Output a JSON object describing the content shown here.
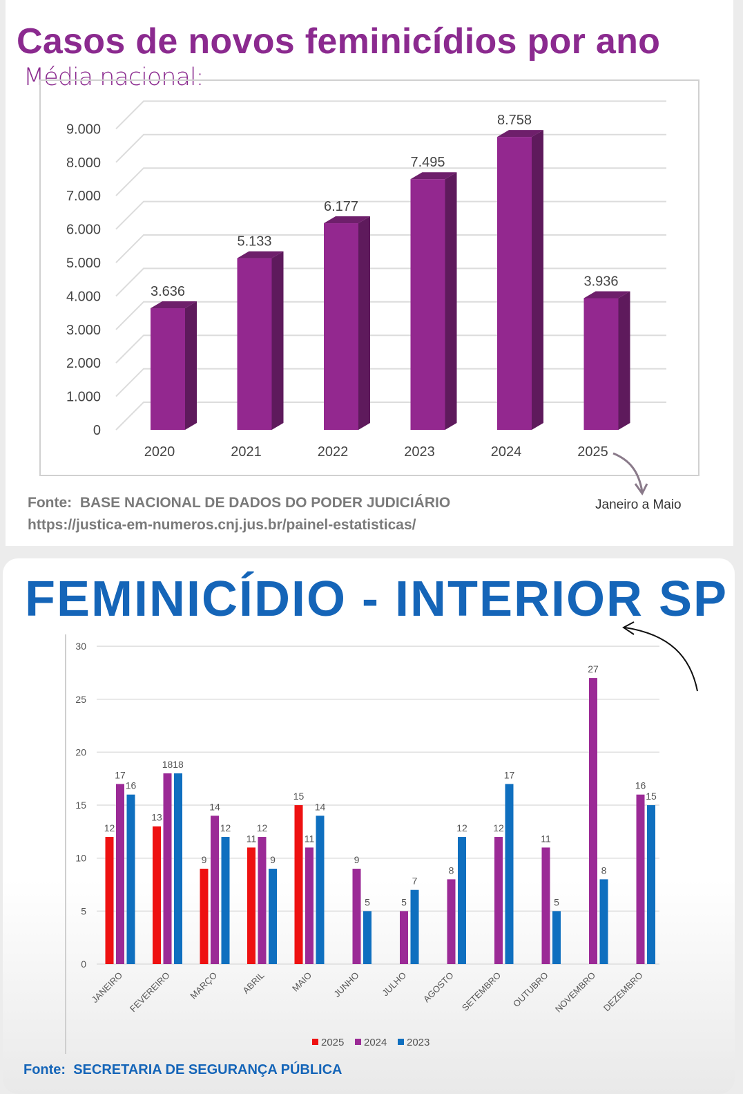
{
  "chart_data": [
    {
      "type": "bar",
      "title": "Casos de novos feminicídios por ano",
      "subtitle": "Média nacional:",
      "categories": [
        "2020",
        "2021",
        "2022",
        "2023",
        "2024",
        "2025"
      ],
      "values": [
        3636,
        5133,
        6177,
        7495,
        8758,
        3936
      ],
      "value_labels": [
        "3.636",
        "5.133",
        "6.177",
        "7.495",
        "8.758",
        "3.936"
      ],
      "yticks": [
        0,
        1000,
        2000,
        3000,
        4000,
        5000,
        6000,
        7000,
        8000,
        9000
      ],
      "ytick_labels": [
        "0",
        "1.000",
        "2.000",
        "3.000",
        "4.000",
        "5.000",
        "6.000",
        "7.000",
        "8.000",
        "9.000"
      ],
      "ylim": [
        0,
        9000
      ],
      "color": "#93288f",
      "annotation": "Janeiro a Maio",
      "source_label": "Fonte:",
      "source": "BASE NACIONAL DE DADOS DO PODER JUDICIÁRIO",
      "source_url": "https://justica-em-numeros.cnj.jus.br/painel-estatisticas/"
    },
    {
      "type": "bar",
      "title": "FEMINICÍDIO - INTERIOR SP",
      "categories": [
        "JANEIRO",
        "FEVEREIRO",
        "MARÇO",
        "ABRIL",
        "MAIO",
        "JUNHO",
        "JULHO",
        "AGOSTO",
        "SETEMBRO",
        "OUTUBRO",
        "NOVEMBRO",
        "DEZEMBRO"
      ],
      "series": [
        {
          "name": "2025",
          "color": "#ee1111",
          "values": [
            12,
            13,
            9,
            11,
            15,
            null,
            null,
            null,
            null,
            null,
            null,
            null
          ]
        },
        {
          "name": "2024",
          "color": "#9b2a96",
          "values": [
            17,
            18,
            14,
            12,
            11,
            9,
            5,
            8,
            12,
            11,
            27,
            16
          ]
        },
        {
          "name": "2023",
          "color": "#0f6fbf",
          "values": [
            16,
            18,
            12,
            9,
            14,
            5,
            7,
            12,
            17,
            5,
            8,
            15
          ]
        }
      ],
      "yticks": [
        0,
        5,
        10,
        15,
        20,
        25,
        30
      ],
      "ylim": [
        0,
        30
      ],
      "legend": "bottom",
      "source_label": "Fonte:",
      "source": "SECRETARIA DE SEGURANÇA PÚBLICA"
    }
  ]
}
